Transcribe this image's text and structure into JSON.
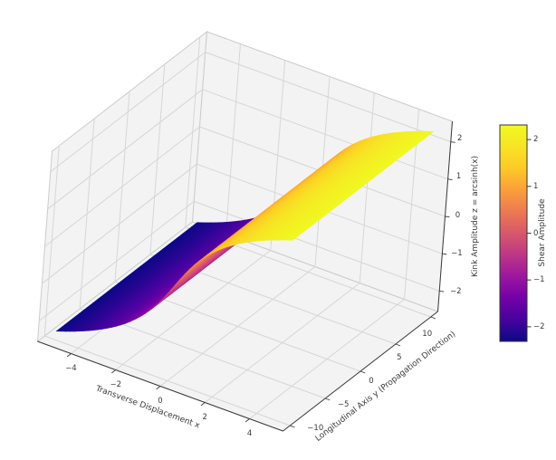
{
  "chart_data": {
    "type": "surface",
    "title": "",
    "x_axis": {
      "label": "Transverse Displacement x",
      "tick_labels": [
        "−4",
        "−2",
        "0",
        "2",
        "4"
      ],
      "tick_values": [
        -4,
        -2,
        0,
        2,
        4
      ],
      "data_range": [
        -5,
        5
      ],
      "axis_limits": [
        -5.5,
        5.5
      ]
    },
    "y_axis": {
      "label": "Longitudinal Axis y (Propagation Direction)",
      "tick_labels": [
        "−10",
        "−5",
        "0",
        "5",
        "10"
      ],
      "tick_values": [
        -10,
        -5,
        0,
        5,
        10
      ],
      "data_range": [
        -10,
        10
      ],
      "axis_limits": [
        -11,
        11
      ]
    },
    "z_axis": {
      "label": "Kink Amplitude z = arcsinh(x)",
      "tick_labels": [
        "−2",
        "−1",
        "0",
        "1",
        "2"
      ],
      "tick_values": [
        -2,
        -1,
        0,
        1,
        2
      ],
      "data_range": [
        -2.3124,
        2.3124
      ],
      "axis_limits": [
        -2.55,
        2.55
      ]
    },
    "surface": {
      "equation": "z = arcsinh(x)",
      "color_by": "shear amplitude (z value)",
      "x_domain": [
        -5,
        5
      ],
      "y_domain": [
        -10,
        10
      ],
      "z_extent": [
        -2.3124,
        2.3124
      ],
      "mesh_rows": 50,
      "mesh_cols": 50
    },
    "view": {
      "elev": 30,
      "azim": -60,
      "projection": "3d"
    },
    "colormap": {
      "name": "plasma",
      "stops": [
        "#0d0887",
        "#46039f",
        "#7201a8",
        "#9c179e",
        "#bd3786",
        "#d8576b",
        "#ed7953",
        "#fb9f3a",
        "#fdca26",
        "#f7e425",
        "#f0f921"
      ]
    },
    "colorbar": {
      "label": "Shear Amplitude",
      "tick_labels": [
        "−2",
        "−1",
        "0",
        "1",
        "2"
      ],
      "tick_values": [
        -2,
        -1,
        0,
        1,
        2
      ],
      "vmin": -2.3124,
      "vmax": 2.3124
    },
    "grid": true,
    "style": {
      "background": "#ffffff",
      "pane_color": "#f3f3f3",
      "grid_color": "#d6d6d6",
      "pane_edge_color": "#cccccc",
      "spine_color": "#3c3c3c",
      "text_color": "#3a3a3a"
    }
  }
}
